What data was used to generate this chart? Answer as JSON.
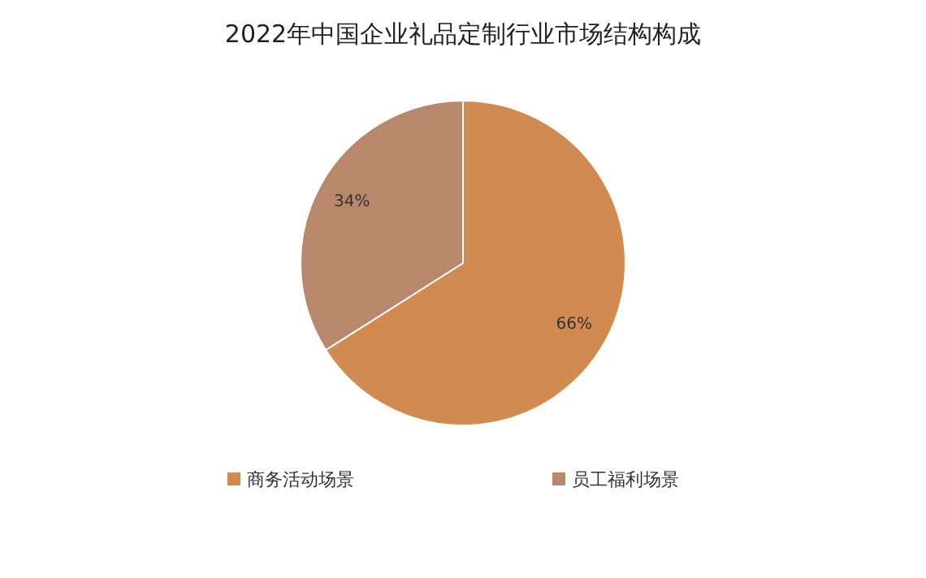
{
  "chart_data": {
    "type": "pie",
    "title": "2022年中国企业礼品定制行业市场结构构成",
    "categories": [
      "商务活动场景",
      "员工福利场景"
    ],
    "values": [
      66,
      34
    ],
    "value_labels": [
      "66%",
      "34%"
    ],
    "colors": [
      "#d18a4f",
      "#b8876c"
    ],
    "legend": "bottom"
  }
}
